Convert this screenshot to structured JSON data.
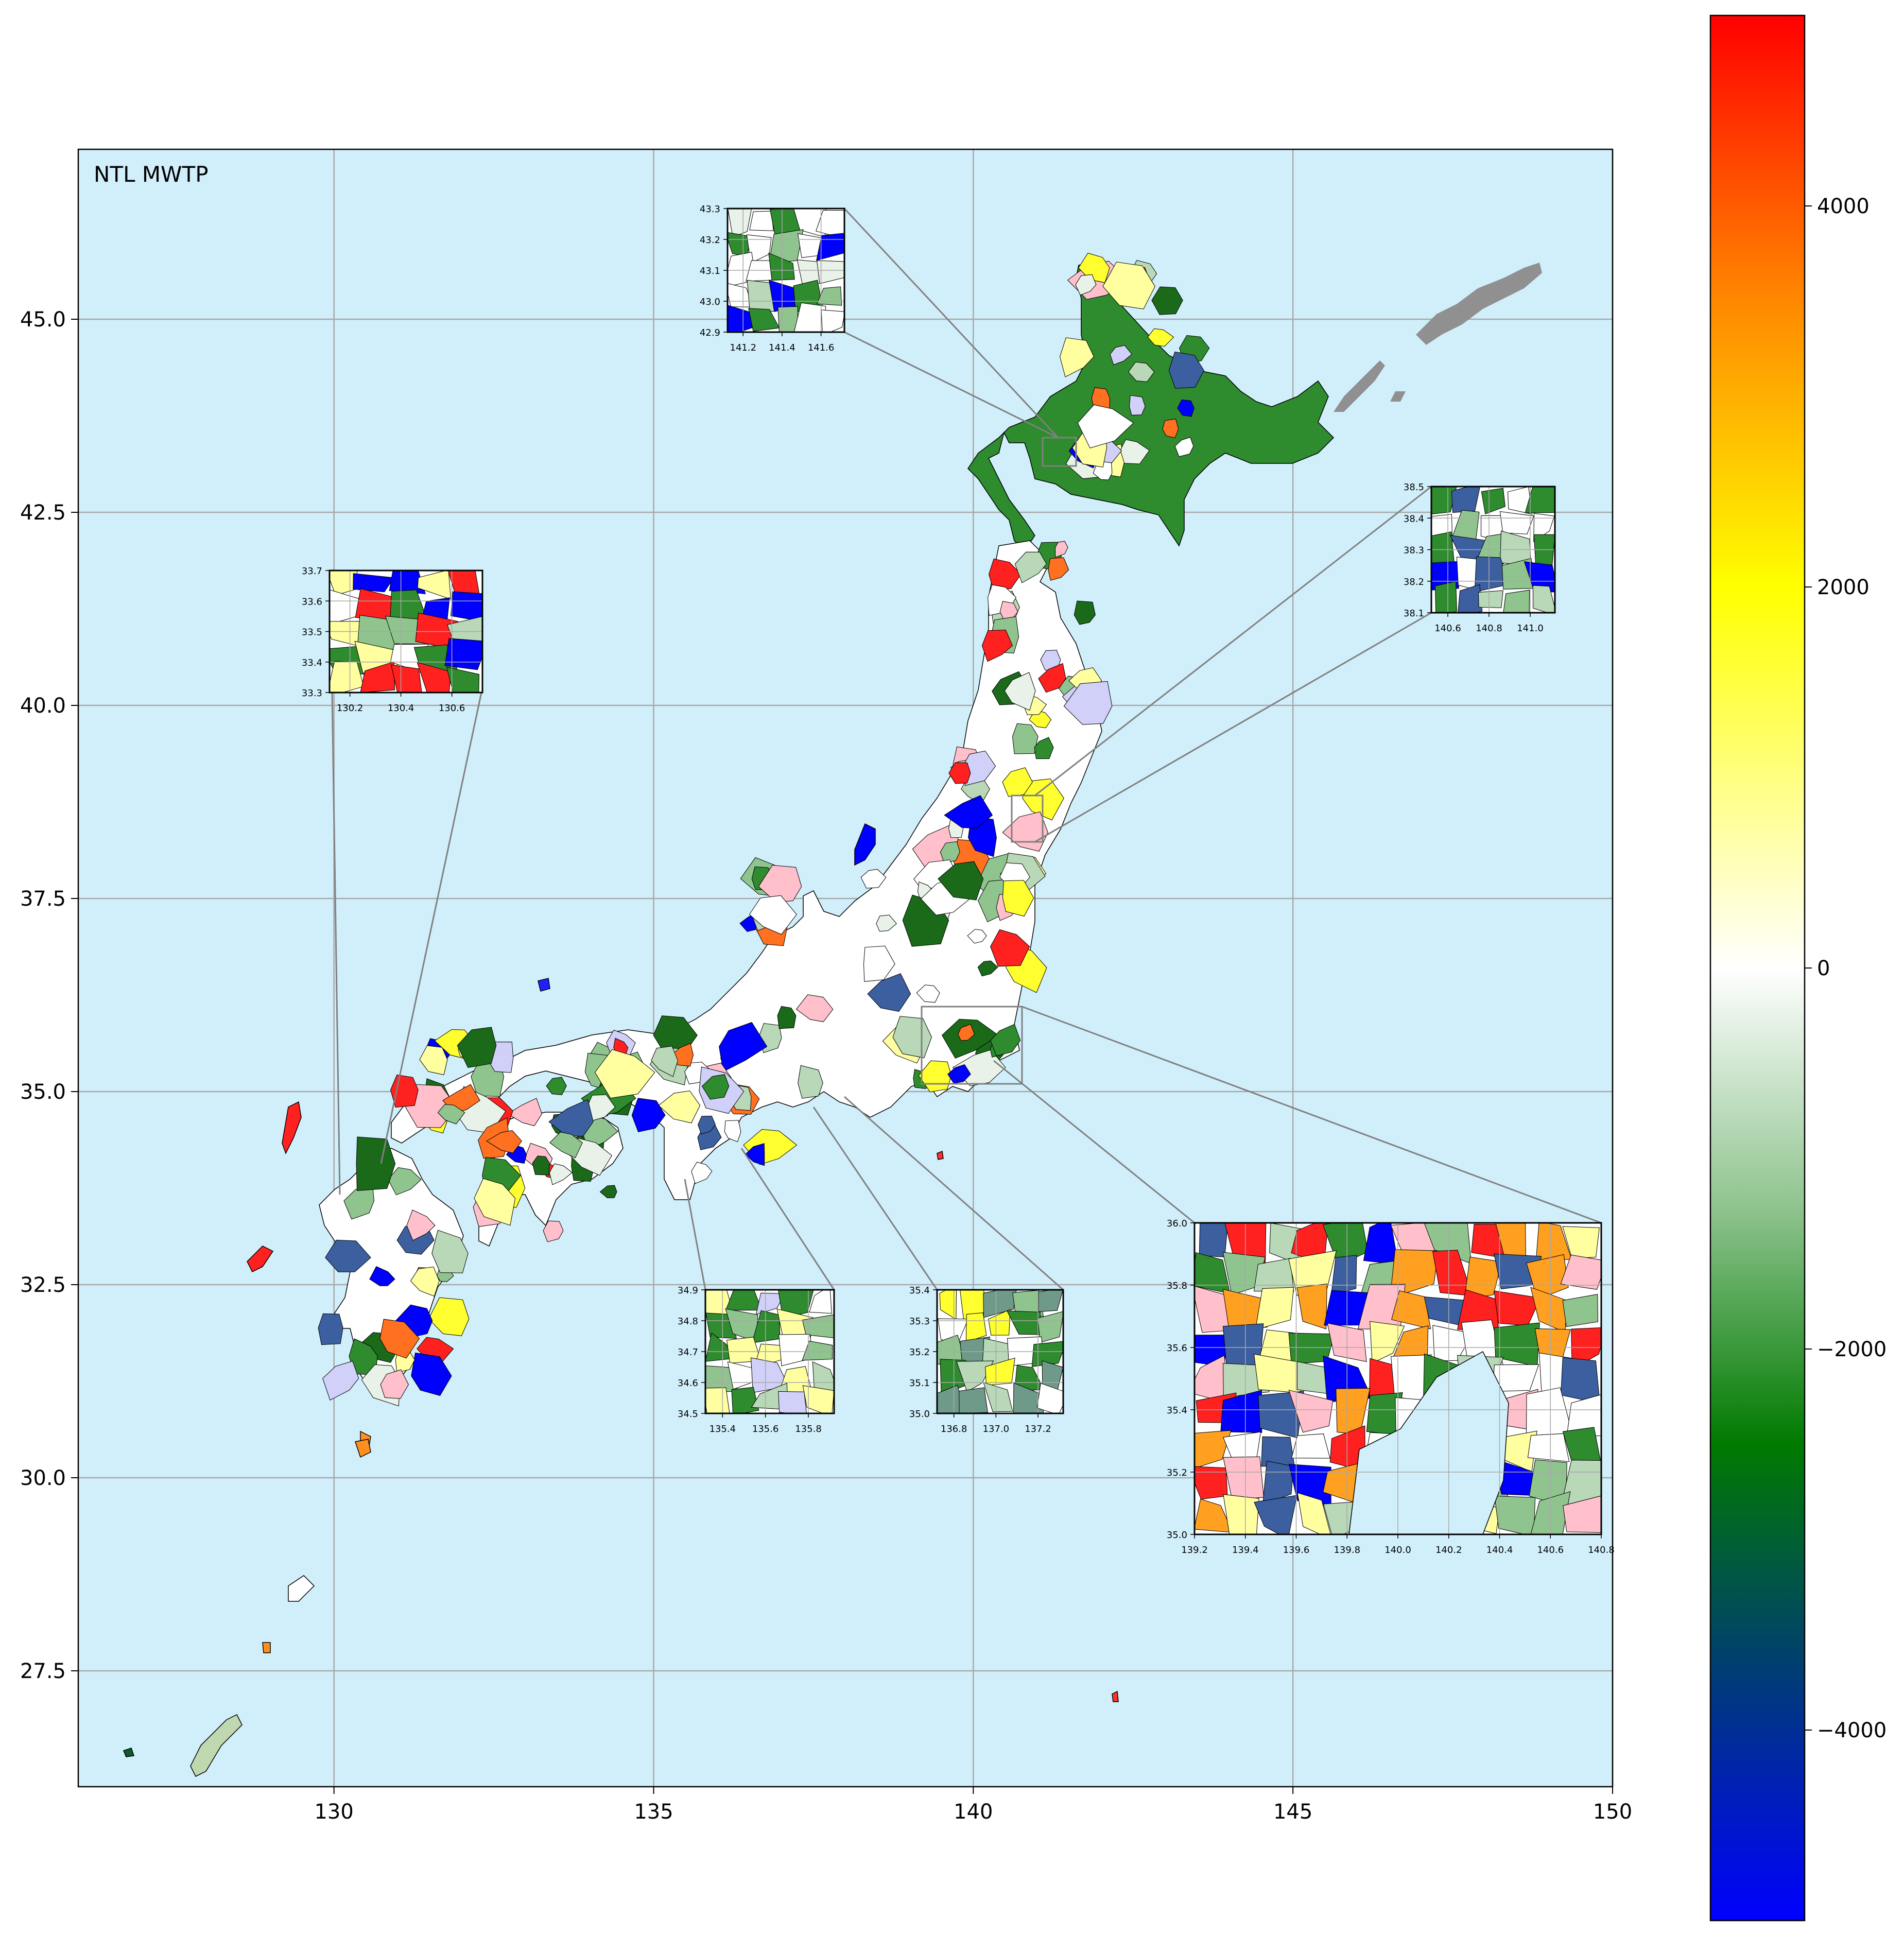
{
  "map": {
    "title": "NTL MWTP",
    "x_range": [
      126,
      150
    ],
    "y_range": [
      26,
      47.2
    ],
    "x_ticks": [
      "130",
      "135",
      "140",
      "145",
      "150"
    ],
    "x_tick_values": [
      130,
      135,
      140,
      145,
      150
    ],
    "y_ticks": [
      "27.5",
      "30.0",
      "32.5",
      "35.0",
      "37.5",
      "40.0",
      "42.5",
      "45.0"
    ],
    "y_tick_values": [
      27.5,
      30.0,
      32.5,
      35.0,
      37.5,
      40.0,
      42.5,
      45.0
    ],
    "ocean_color": "#d1effb",
    "grid": true,
    "no_data_color": "#909090"
  },
  "colorbar": {
    "ticks": [
      "4000",
      "2000",
      "0",
      "−2000",
      "−4000"
    ],
    "tick_values": [
      4000,
      2000,
      0,
      -2000,
      -4000
    ],
    "range": [
      -5000,
      5000
    ],
    "stops": [
      {
        "value": -5000,
        "color": "#0000ff"
      },
      {
        "value": -3750,
        "color": "#003a7a"
      },
      {
        "value": -2500,
        "color": "#007a00"
      },
      {
        "value": -1250,
        "color": "#8fc48f"
      },
      {
        "value": 0,
        "color": "#ffffff"
      },
      {
        "value": 1000,
        "color": "#ffff80"
      },
      {
        "value": 2000,
        "color": "#ffff00"
      },
      {
        "value": 3500,
        "color": "#ff8800"
      },
      {
        "value": 5000,
        "color": "#ff0000"
      }
    ]
  },
  "insets": [
    {
      "name": "sapporo",
      "x_ticks": [
        "141.2",
        "141.4",
        "141.6"
      ],
      "y_ticks": [
        "42.9",
        "43.0",
        "43.1",
        "43.2",
        "43.3"
      ]
    },
    {
      "name": "sendai",
      "x_ticks": [
        "140.6",
        "140.8",
        "141.0"
      ],
      "y_ticks": [
        "38.1",
        "38.2",
        "38.3",
        "38.4",
        "38.5"
      ]
    },
    {
      "name": "fukuoka",
      "x_ticks": [
        "130.2",
        "130.4",
        "130.6"
      ],
      "y_ticks": [
        "33.3",
        "33.4",
        "33.5",
        "33.6",
        "33.7"
      ]
    },
    {
      "name": "osaka",
      "x_ticks": [
        "135.4",
        "135.6",
        "135.8"
      ],
      "y_ticks": [
        "34.5",
        "34.6",
        "34.7",
        "34.8",
        "34.9"
      ]
    },
    {
      "name": "nagoya",
      "x_ticks": [
        "136.8",
        "137.0",
        "137.2"
      ],
      "y_ticks": [
        "35.0",
        "35.1",
        "35.2",
        "35.3",
        "35.4"
      ]
    },
    {
      "name": "tokyo",
      "x_ticks": [
        "139.2",
        "139.4",
        "139.6",
        "139.8",
        "140.0",
        "140.2",
        "140.4",
        "140.6",
        "140.8"
      ],
      "y_ticks": [
        "35.0",
        "35.2",
        "35.4",
        "35.6",
        "35.8",
        "36.0"
      ]
    }
  ]
}
